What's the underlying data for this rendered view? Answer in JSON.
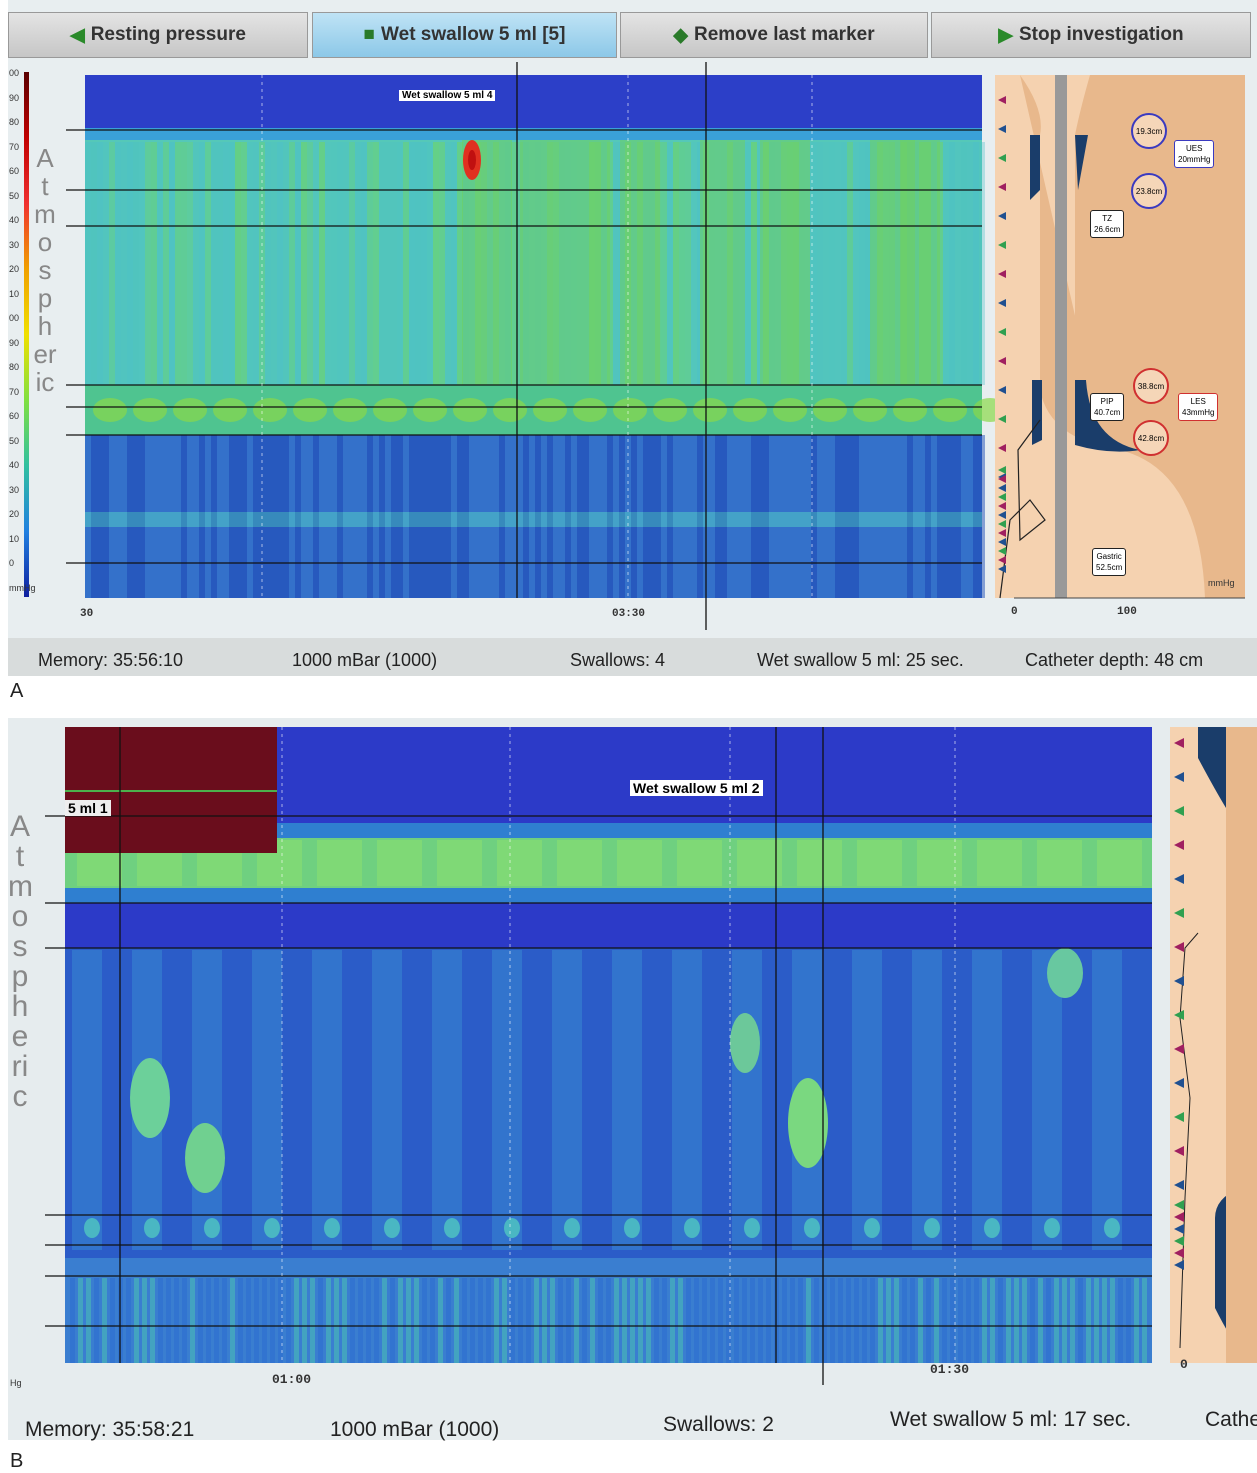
{
  "panel_a": {
    "label": "A",
    "toolbar": [
      "Resting pressure",
      "Wet swallow 5 ml [5]",
      "Remove last marker",
      "Stop investigation"
    ],
    "scale": [
      "00",
      "90",
      "80",
      "70",
      "60",
      "50",
      "40",
      "30",
      "20",
      "10",
      "00",
      "90",
      "80",
      "70",
      "60",
      "50",
      "40",
      "30",
      "20",
      "10",
      "0",
      "mmHg"
    ],
    "atmospheric": "Atmospheric",
    "marker": "Wet swallow 5 ml 4",
    "time_labels": [
      "30",
      "03:30"
    ],
    "profile": {
      "upper_top": "19.3cm",
      "upper_bottom": "23.8cm",
      "ues": [
        "UES",
        "20mmHg"
      ],
      "tz": [
        "TZ",
        "26.6cm"
      ],
      "lower_top": "38.8cm",
      "pip": [
        "PIP",
        "40.7cm"
      ],
      "les": [
        "LES",
        "43mmHg"
      ],
      "lower_bottom": "42.8cm",
      "gastric": [
        "Gastric",
        "52.5cm"
      ],
      "axis": [
        "0",
        "100"
      ],
      "unit": "mmHg"
    },
    "status": [
      "Memory: 35:56:10",
      "1000 mBar (1000)",
      "Swallows: 4",
      "Wet swallow 5 ml: 25 sec.",
      "Catheter depth: 48 cm"
    ]
  },
  "panel_b": {
    "label": "B",
    "atmospheric": "Atmospheric",
    "markers": [
      "5 ml 1",
      "Wet swallow 5 ml 2"
    ],
    "time_labels": [
      "01:00",
      "01:30"
    ],
    "profile_axis": "0",
    "unit": "Hg",
    "status": [
      "Memory: 35:58:21",
      "1000 mBar (1000)",
      "Swallows: 2",
      "Wet swallow 5 ml: 17 sec.",
      "Cathe"
    ]
  }
}
